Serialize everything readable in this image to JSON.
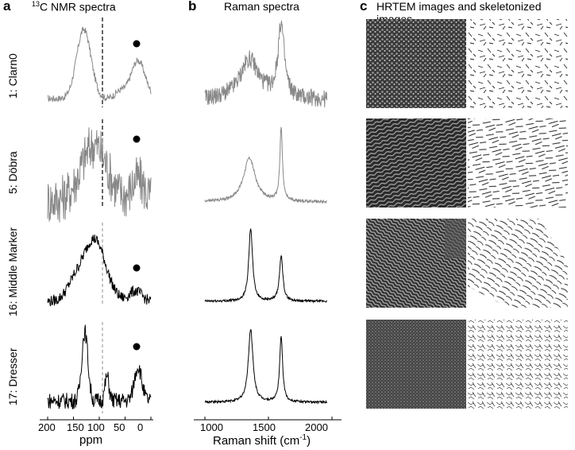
{
  "figure": {
    "panels": [
      {
        "letter": "a",
        "title": "13C NMR spectra",
        "title_sup": "13",
        "title_main": "C NMR spectra"
      },
      {
        "letter": "b",
        "title": "Raman spectra"
      },
      {
        "letter": "c",
        "title": "HRTEM images and skeletonized images"
      }
    ],
    "rows": [
      {
        "label": "1: Clarn0"
      },
      {
        "label": "5: Döbra"
      },
      {
        "label": "16: Middle Marker"
      },
      {
        "label": "17: Dresser"
      }
    ],
    "nmr_axis": {
      "label": "ppm",
      "ticks": [
        "200",
        "150",
        "100",
        "50",
        "0"
      ],
      "xlim": [
        200,
        0
      ]
    },
    "raman_axis": {
      "label": "Raman shift (cm",
      "label_sup": "-1",
      "label_end": ")",
      "ticks": [
        "1000",
        "1500",
        "2000"
      ],
      "xlim": [
        1000,
        2000
      ]
    }
  },
  "chart_data": [
    {
      "type": "line",
      "title": "13C NMR spectra",
      "xlabel": "ppm",
      "xlim": [
        200,
        0
      ],
      "series": [
        {
          "name": "1: Clarn0",
          "color": "#888888",
          "peaks_ppm": [
            130,
            25
          ],
          "dashed_marker_ppm": 90,
          "dot_ppm": 20
        },
        {
          "name": "5: Döbra",
          "color": "#888888",
          "peaks_ppm": [
            110
          ],
          "dashed_marker_ppm": 90,
          "dot_ppm": 20
        },
        {
          "name": "16: Middle Marker",
          "color": "#000000",
          "peaks_ppm": [
            110
          ],
          "dashed_marker_ppm": 90,
          "dot_ppm": 20
        },
        {
          "name": "17: Dresser",
          "color": "#000000",
          "peaks_ppm": [
            128,
            85,
            25
          ],
          "dashed_marker_ppm": 90,
          "dot_ppm": 20
        }
      ]
    },
    {
      "type": "line",
      "title": "Raman spectra",
      "xlabel": "Raman shift (cm-1)",
      "xlim": [
        1000,
        2000
      ],
      "series": [
        {
          "name": "1: Clarn0",
          "color": "#888888",
          "d_band": 1350,
          "g_band": 1600,
          "d_rel": 0.55,
          "g_rel": 1.0
        },
        {
          "name": "5: Döbra",
          "color": "#888888",
          "d_band": 1350,
          "g_band": 1600,
          "d_rel": 0.6,
          "g_rel": 1.0
        },
        {
          "name": "16: Middle Marker",
          "color": "#000000",
          "d_band": 1360,
          "g_band": 1600,
          "d_rel": 1.0,
          "g_rel": 0.62
        },
        {
          "name": "17: Dresser",
          "color": "#000000",
          "d_band": 1360,
          "g_band": 1600,
          "d_rel": 1.0,
          "g_rel": 0.9
        }
      ]
    }
  ]
}
